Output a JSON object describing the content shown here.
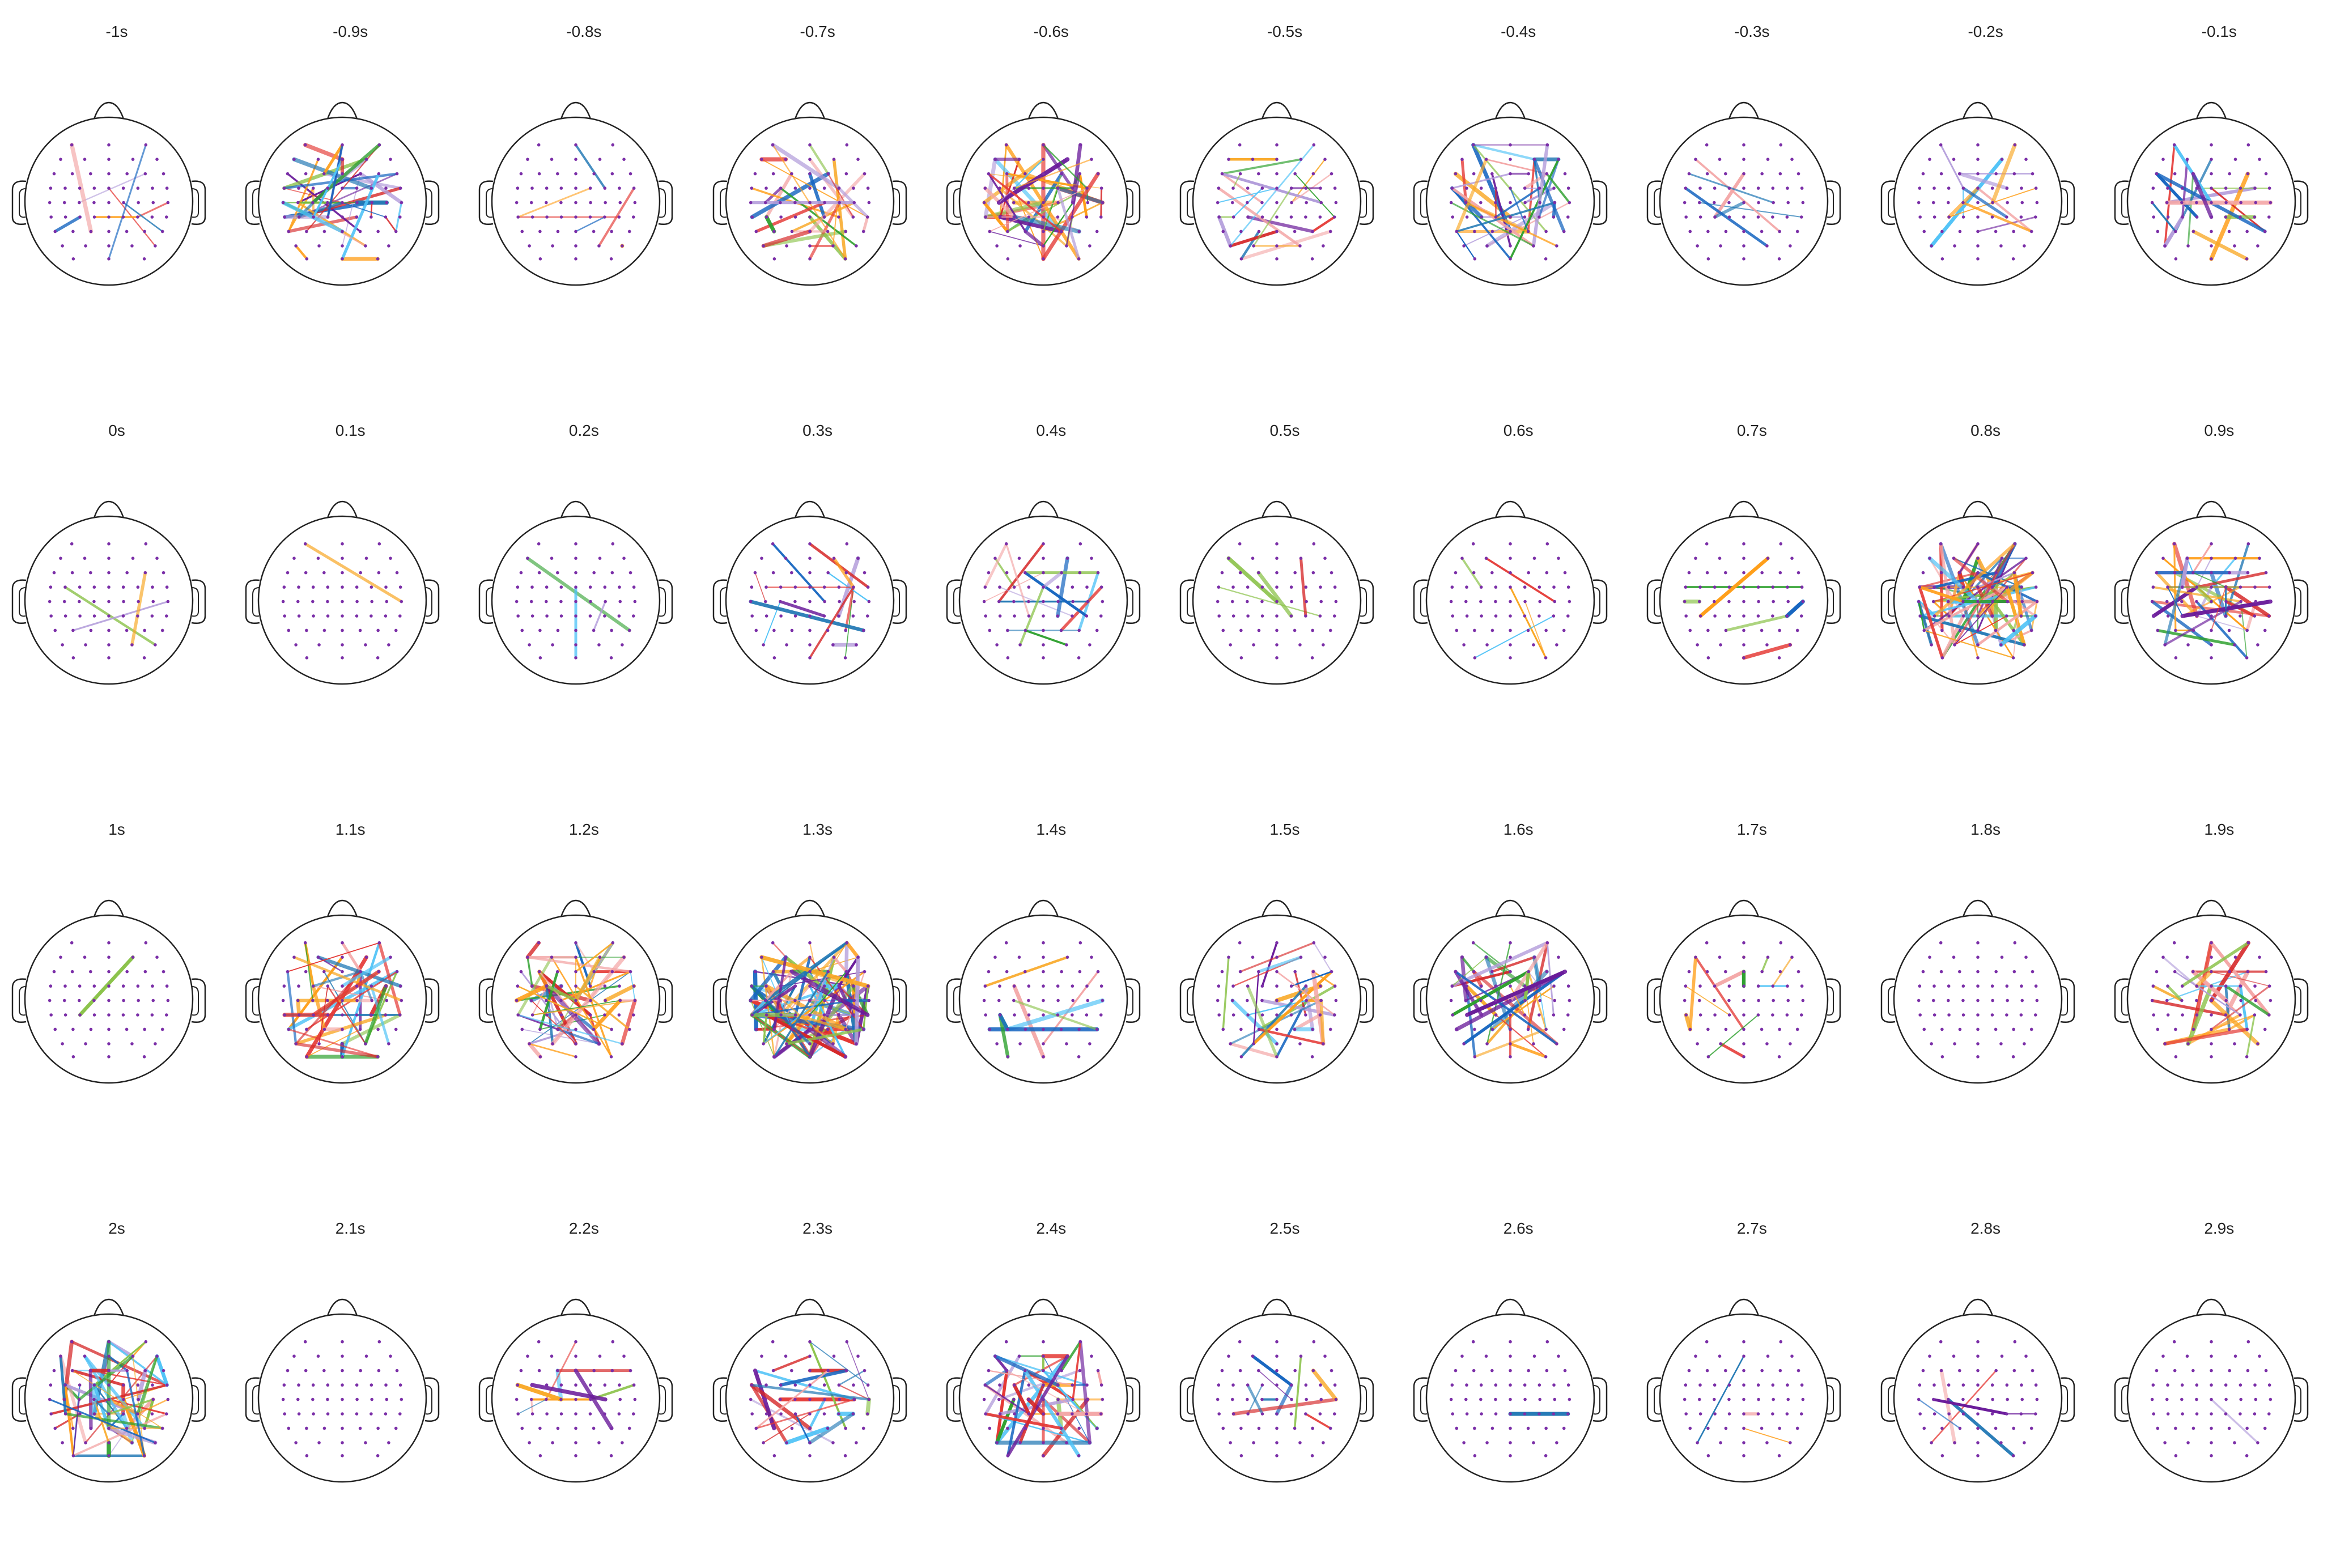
{
  "figure": {
    "time_labels": [
      "-1s",
      "-0.9s",
      "-0.8s",
      "-0.7s",
      "-0.6s",
      "-0.5s",
      "-0.4s",
      "-0.3s",
      "-0.2s",
      "-0.1s",
      "0s",
      "0.1s",
      "0.2s",
      "0.3s",
      "0.4s",
      "0.5s",
      "0.6s",
      "0.7s",
      "0.8s",
      "0.9s",
      "1s",
      "1.1s",
      "1.2s",
      "1.3s",
      "1.4s",
      "1.5s",
      "1.6s",
      "1.7s",
      "1.8s",
      "1.9s",
      "2s",
      "2.1s",
      "2.2s",
      "2.3s",
      "2.4s",
      "2.5s",
      "2.6s",
      "2.7s",
      "2.8s",
      "2.9s"
    ],
    "connection_counts": [
      8,
      45,
      6,
      30,
      55,
      22,
      40,
      6,
      12,
      18,
      3,
      1,
      3,
      15,
      16,
      4,
      5,
      6,
      90,
      40,
      1,
      45,
      60,
      120,
      8,
      30,
      40,
      12,
      0,
      30,
      70,
      0,
      10,
      25,
      45,
      10,
      1,
      3,
      6,
      1
    ],
    "colors": {
      "electrode": "#7b2fa8",
      "head_outline": "#222222",
      "connection_palette": [
        "#d62728",
        "#1f77b4",
        "#2ca02c",
        "#ff9f1a",
        "#6a1b9a",
        "#4fc3f7",
        "#e53935",
        "#f4a6a6",
        "#b39ddb",
        "#8bc34a",
        "#1565c0",
        "#f9a825"
      ]
    }
  }
}
